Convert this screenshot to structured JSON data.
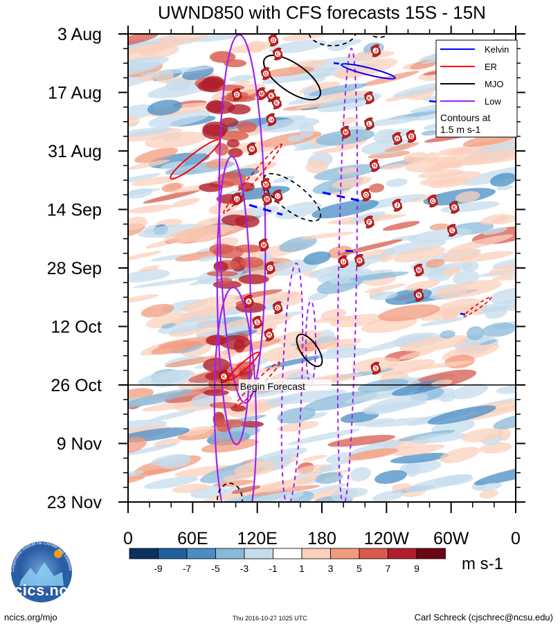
{
  "chart_data": {
    "type": "heatmap",
    "title": "UWND850 with CFS forecasts  15S - 15N",
    "x_tick_labels": [
      "0",
      "60E",
      "120E",
      "180",
      "120W",
      "60W",
      "0"
    ],
    "y_tick_labels": [
      "3 Aug",
      "17 Aug",
      "31 Aug",
      "14 Sep",
      "28 Sep",
      "12 Oct",
      "26 Oct",
      "9 Nov",
      "23 Nov"
    ],
    "y_range_days": [
      0,
      112
    ],
    "x_range_deg_east": [
      0,
      360
    ],
    "begin_forecast": {
      "label": "Begin Forecast",
      "day": 84
    },
    "colorbar": {
      "unit": "m s-1",
      "tick_labels": [
        "-9",
        "-7",
        "-5",
        "-3",
        "-1",
        "1",
        "3",
        "5",
        "7",
        "9"
      ],
      "colors": [
        "#0b3060",
        "#1f5f9e",
        "#4a8dc4",
        "#88b9da",
        "#c6dcec",
        "#ffffff",
        "#fbd0bc",
        "#f29b7d",
        "#d85a4e",
        "#b01f2d",
        "#6b0715"
      ]
    },
    "legend": {
      "entries": [
        {
          "label": "Kelvin",
          "color": "#0000ff"
        },
        {
          "label": "ER",
          "color": "#ff0000"
        },
        {
          "label": "MJO",
          "color": "#000000"
        },
        {
          "label": "Low",
          "color": "#a020f0"
        }
      ],
      "note": "Contours at 1.5 m s-1",
      "position": "top-right"
    },
    "storms": [
      {
        "letter": "O",
        "lon": 135,
        "day": 1.5
      },
      {
        "letter": "C",
        "lon": 139,
        "day": 4.8
      },
      {
        "letter": "J",
        "lon": 230,
        "day": 4
      },
      {
        "letter": "G",
        "lon": 128,
        "day": 9.5
      },
      {
        "letter": "D",
        "lon": 101,
        "day": 14.5
      },
      {
        "letter": "M",
        "lon": 124,
        "day": 14.3
      },
      {
        "letter": "K",
        "lon": 133,
        "day": 14.8
      },
      {
        "letter": "K",
        "lon": 138,
        "day": 16.5
      },
      {
        "letter": "K",
        "lon": 224,
        "day": 15.3
      },
      {
        "letter": "14",
        "lon": 133,
        "day": 20.5
      },
      {
        "letter": "L",
        "lon": 224,
        "day": 21.5
      },
      {
        "letter": "M",
        "lon": 202,
        "day": 23.5
      },
      {
        "letter": "H",
        "lon": 250,
        "day": 25
      },
      {
        "letter": "B",
        "lon": 263,
        "day": 24.5
      },
      {
        "letter": "N",
        "lon": 115,
        "day": 27.5
      },
      {
        "letter": "N",
        "lon": 229,
        "day": 31.5
      },
      {
        "letter": "M",
        "lon": 128,
        "day": 36
      },
      {
        "letter": "O",
        "lon": 221,
        "day": 38.5
      },
      {
        "letter": "18",
        "lon": 101,
        "day": 39.5
      },
      {
        "letter": "M",
        "lon": 129,
        "day": 39.5
      },
      {
        "letter": "17",
        "lon": 139,
        "day": 38.8
      },
      {
        "letter": "J",
        "lon": 250,
        "day": 41
      },
      {
        "letter": "G",
        "lon": 283,
        "day": 40
      },
      {
        "letter": "K",
        "lon": 303,
        "day": 41.5
      },
      {
        "letter": "P",
        "lon": 224,
        "day": 45
      },
      {
        "letter": "C",
        "lon": 301,
        "day": 47
      },
      {
        "letter": "M",
        "lon": 126,
        "day": 50.5
      },
      {
        "letter": "U",
        "lon": 200,
        "day": 54.5
      },
      {
        "letter": "R",
        "lon": 215,
        "day": 54.2
      },
      {
        "letter": "C",
        "lon": 132,
        "day": 56
      },
      {
        "letter": "M",
        "lon": 270,
        "day": 56.5
      },
      {
        "letter": "N",
        "lon": 270,
        "day": 62.5
      },
      {
        "letter": "A",
        "lon": 112,
        "day": 64
      },
      {
        "letter": "G",
        "lon": 139,
        "day": 65.5
      },
      {
        "letter": "S",
        "lon": 120,
        "day": 69
      },
      {
        "letter": "H",
        "lon": 131,
        "day": 72
      },
      {
        "letter": "S",
        "lon": 230,
        "day": 80
      },
      {
        "letter": "K",
        "lon": 89,
        "day": 82
      }
    ]
  },
  "footer": {
    "left": "ncics.org/mjo",
    "middle": "Thu 2016-10-27 1025 UTC",
    "right": "Carl Schreck (cjschrec@ncsu.edu)"
  },
  "logo": {
    "text": "cics.nc",
    "arc_text": "Cooperative Institute for Climate and Satellites"
  }
}
